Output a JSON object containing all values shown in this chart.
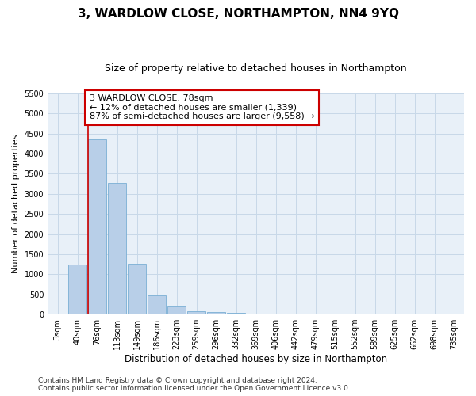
{
  "title": "3, WARDLOW CLOSE, NORTHAMPTON, NN4 9YQ",
  "subtitle": "Size of property relative to detached houses in Northampton",
  "xlabel": "Distribution of detached houses by size in Northampton",
  "ylabel": "Number of detached properties",
  "footnote1": "Contains HM Land Registry data © Crown copyright and database right 2024.",
  "footnote2": "Contains public sector information licensed under the Open Government Licence v3.0.",
  "bar_labels": [
    "3sqm",
    "40sqm",
    "76sqm",
    "113sqm",
    "149sqm",
    "186sqm",
    "223sqm",
    "259sqm",
    "296sqm",
    "332sqm",
    "369sqm",
    "406sqm",
    "442sqm",
    "479sqm",
    "515sqm",
    "552sqm",
    "589sqm",
    "625sqm",
    "662sqm",
    "698sqm",
    "735sqm"
  ],
  "bar_values": [
    0,
    1250,
    4350,
    3275,
    1260,
    475,
    215,
    90,
    65,
    45,
    30,
    0,
    0,
    0,
    0,
    0,
    0,
    0,
    0,
    0,
    0
  ],
  "bar_color": "#b8cfe8",
  "bar_edgecolor": "#7aafd4",
  "property_line_bin_index": 2,
  "property_line_color": "#cc0000",
  "annotation_line1": "3 WARDLOW CLOSE: 78sqm",
  "annotation_line2": "← 12% of detached houses are smaller (1,339)",
  "annotation_line3": "87% of semi-detached houses are larger (9,558) →",
  "annotation_box_color": "#ffffff",
  "annotation_box_edgecolor": "#cc0000",
  "ylim": [
    0,
    5500
  ],
  "yticks": [
    0,
    500,
    1000,
    1500,
    2000,
    2500,
    3000,
    3500,
    4000,
    4500,
    5000,
    5500
  ],
  "grid_color": "#c8d8e8",
  "plot_background_color": "#e8f0f8",
  "title_fontsize": 11,
  "subtitle_fontsize": 9,
  "xlabel_fontsize": 8.5,
  "ylabel_fontsize": 8,
  "tick_fontsize": 7,
  "annotation_fontsize": 8,
  "footnote_fontsize": 6.5
}
